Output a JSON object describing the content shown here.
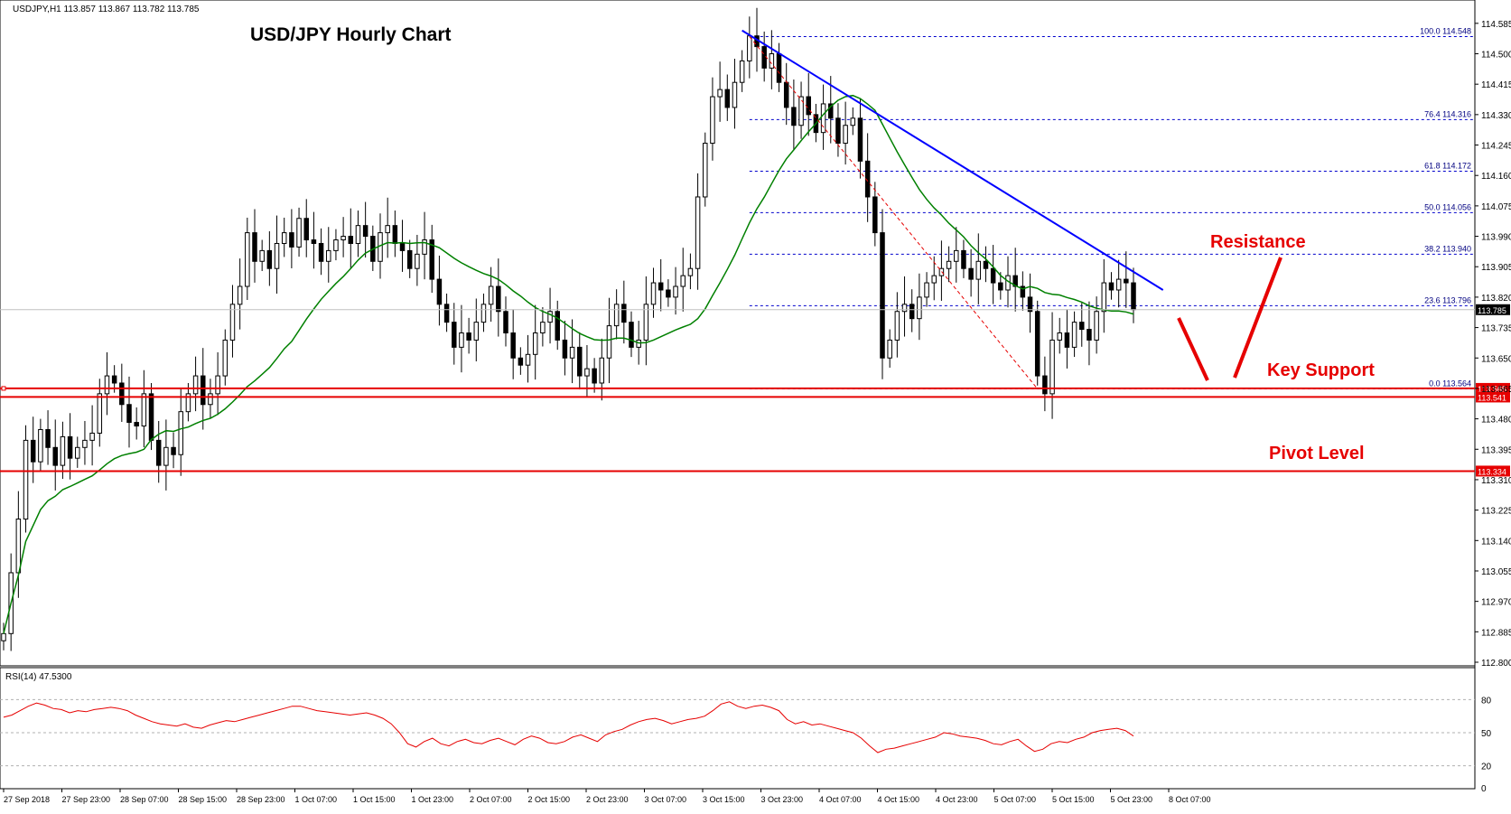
{
  "header": {
    "symbol_info": "USDJPY,H1  113.857  113.867  113.782  113.785",
    "chart_title": "USD/JPY Hourly Chart"
  },
  "annotations": {
    "resistance": "Resistance",
    "key_support": "Key Support",
    "pivot_level": "Pivot Level"
  },
  "rsi": {
    "label": "RSI(14) 47.5300",
    "ticks": [
      "80",
      "50",
      "20",
      "0"
    ],
    "levels": [
      80,
      50,
      20
    ],
    "values": [
      64,
      66,
      70,
      74,
      77,
      75,
      72,
      71,
      68,
      70,
      69,
      71,
      72,
      73,
      72,
      70,
      66,
      63,
      60,
      58,
      57,
      56,
      58,
      55,
      54,
      57,
      59,
      61,
      60,
      62,
      64,
      66,
      68,
      70,
      72,
      74,
      74,
      72,
      70,
      69,
      68,
      67,
      66,
      67,
      68,
      66,
      63,
      58,
      50,
      40,
      37,
      42,
      45,
      40,
      38,
      42,
      44,
      41,
      40,
      43,
      45,
      42,
      39,
      44,
      47,
      45,
      41,
      40,
      42,
      46,
      48,
      45,
      42,
      48,
      51,
      53,
      57,
      60,
      62,
      63,
      61,
      58,
      60,
      62,
      63,
      65,
      70,
      76,
      78,
      74,
      72,
      74,
      75,
      73,
      70,
      62,
      58,
      60,
      57,
      58,
      56,
      54,
      52,
      50,
      45,
      38,
      32,
      35,
      36,
      38,
      40,
      42,
      44,
      46,
      50,
      49,
      47,
      46,
      45,
      43,
      40,
      39,
      42,
      44,
      38,
      33,
      35,
      40,
      42,
      41,
      44,
      46,
      50,
      52,
      53,
      54,
      52,
      47
    ],
    "color": "#e60000"
  },
  "chart_data": {
    "type": "candlestick",
    "title": "USD/JPY Hourly Chart",
    "symbol": "USDJPY",
    "timeframe": "H1",
    "ylim": [
      112.8,
      114.63
    ],
    "y_ticks": [
      "114.585",
      "114.500",
      "114.415",
      "114.330",
      "114.245",
      "114.160",
      "114.075",
      "113.990",
      "113.905",
      "113.820",
      "113.735",
      "113.650",
      "113.565",
      "113.480",
      "113.395",
      "113.310",
      "113.225",
      "113.140",
      "113.055",
      "112.970",
      "112.885",
      "112.800"
    ],
    "x_labels": [
      "27 Sep 2018",
      "27 Sep 23:00",
      "28 Sep 07:00",
      "28 Sep 15:00",
      "28 Sep 23:00",
      "1 Oct 07:00",
      "1 Oct 15:00",
      "1 Oct 23:00",
      "2 Oct 07:00",
      "2 Oct 15:00",
      "2 Oct 23:00",
      "3 Oct 07:00",
      "3 Oct 15:00",
      "3 Oct 23:00",
      "4 Oct 07:00",
      "4 Oct 15:00",
      "4 Oct 23:00",
      "5 Oct 07:00",
      "5 Oct 15:00",
      "5 Oct 23:00",
      "8 Oct 07:00"
    ],
    "closes": [
      112.88,
      113.05,
      113.2,
      113.42,
      113.36,
      113.45,
      113.4,
      113.35,
      113.43,
      113.37,
      113.4,
      113.42,
      113.44,
      113.55,
      113.6,
      113.58,
      113.52,
      113.47,
      113.46,
      113.55,
      113.42,
      113.35,
      113.4,
      113.38,
      113.5,
      113.55,
      113.6,
      113.52,
      113.55,
      113.6,
      113.7,
      113.8,
      113.85,
      114.0,
      113.92,
      113.95,
      113.9,
      113.97,
      114.0,
      113.96,
      114.04,
      113.98,
      113.97,
      113.92,
      113.95,
      113.98,
      113.99,
      113.97,
      114.02,
      113.99,
      113.92,
      114.0,
      114.02,
      113.97,
      113.95,
      113.9,
      113.94,
      113.98,
      113.87,
      113.8,
      113.75,
      113.68,
      113.72,
      113.7,
      113.75,
      113.8,
      113.85,
      113.78,
      113.72,
      113.65,
      113.63,
      113.66,
      113.72,
      113.75,
      113.78,
      113.7,
      113.65,
      113.68,
      113.6,
      113.62,
      113.58,
      113.65,
      113.74,
      113.8,
      113.75,
      113.68,
      113.7,
      113.8,
      113.86,
      113.84,
      113.82,
      113.85,
      113.88,
      113.9,
      114.1,
      114.25,
      114.38,
      114.4,
      114.35,
      114.42,
      114.48,
      114.55,
      114.52,
      114.46,
      114.5,
      114.42,
      114.35,
      114.3,
      114.38,
      114.33,
      114.28,
      114.36,
      114.32,
      114.25,
      114.3,
      114.32,
      114.2,
      114.1,
      114.0,
      113.65,
      113.7,
      113.78,
      113.8,
      113.76,
      113.82,
      113.86,
      113.88,
      113.9,
      113.92,
      113.95,
      113.9,
      113.87,
      113.92,
      113.9,
      113.86,
      113.84,
      113.88,
      113.85,
      113.82,
      113.78,
      113.6,
      113.55,
      113.7,
      113.72,
      113.68,
      113.75,
      113.73,
      113.7,
      113.78,
      113.86,
      113.84,
      113.87,
      113.86,
      113.785
    ],
    "ma_color": "#008000",
    "fib": {
      "levels": [
        {
          "label": "100.0 114.548",
          "price": 114.548
        },
        {
          "label": "76.4 114.316",
          "price": 114.316
        },
        {
          "label": "61.8 114.172",
          "price": 114.172
        },
        {
          "label": "50.0 114.056",
          "price": 114.056
        },
        {
          "label": "38.2 113.940",
          "price": 113.94
        },
        {
          "label": "23.6 113.796",
          "price": 113.796
        },
        {
          "label": "0.0 113.564",
          "price": 113.564
        }
      ],
      "color": "#0000cc"
    },
    "horizontal_lines": [
      {
        "price": 113.565,
        "badge": "113.565"
      },
      {
        "price": 113.541,
        "badge": "113.541"
      },
      {
        "price": 113.334,
        "badge": "113.334"
      }
    ],
    "current_price": {
      "price": 113.785,
      "badge": "113.785"
    },
    "line_color": "#e60000",
    "trendline_color": "#0000ff"
  }
}
